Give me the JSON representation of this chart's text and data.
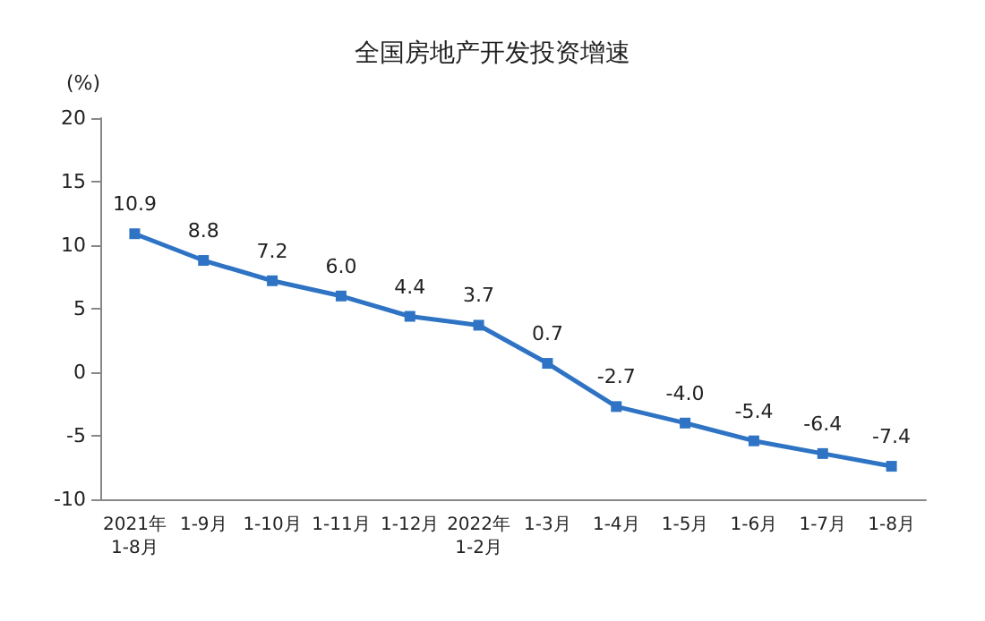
{
  "chart_data": {
    "type": "line",
    "title": "全国房地产开发投资增速",
    "ylabel": "(%)",
    "categories": [
      "2021年\n1-8月",
      "1-9月",
      "1-10月",
      "1-11月",
      "1-12月",
      "2022年\n1-2月",
      "1-3月",
      "1-4月",
      "1-5月",
      "1-6月",
      "1-7月",
      "1-8月"
    ],
    "series": [
      {
        "color": "#2e73c4",
        "values": [
          10.9,
          8.8,
          7.2,
          6.0,
          4.4,
          3.7,
          0.7,
          -2.7,
          -4.0,
          -5.4,
          -6.4,
          -7.4
        ],
        "value_labels": [
          "10.9",
          "8.8",
          "7.2",
          "6.0",
          "4.4",
          "3.7",
          "0.7",
          "-2.7",
          "-4.0",
          "-5.4",
          "-6.4",
          "-7.4"
        ]
      }
    ],
    "ylim": [
      -10,
      20
    ],
    "yticks": [
      -10,
      -5,
      0,
      5,
      10,
      15,
      20
    ],
    "grid": false,
    "marker": "square",
    "line_style": "solid"
  }
}
